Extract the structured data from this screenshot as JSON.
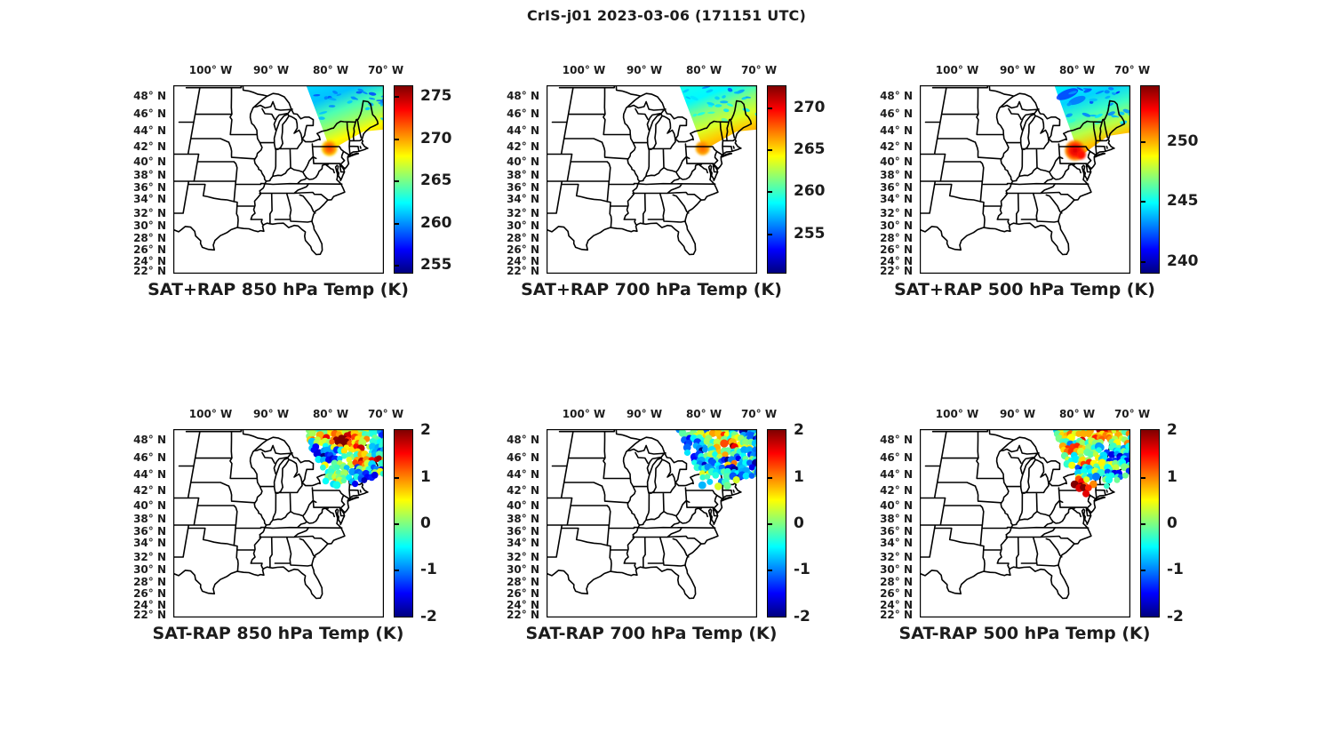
{
  "figure_title": "CrIS-j01 2023-03-06 (171151 UTC)",
  "axes": {
    "lon_tick_labels": [
      "100° W",
      "90° W",
      "80° W",
      "70° W"
    ],
    "lon_tick_values": [
      100,
      90,
      80,
      70
    ],
    "lat_tick_labels": [
      "48° N",
      "46° N",
      "44° N",
      "42° N",
      "40° N",
      "38° N",
      "36° N",
      "34° N",
      "32° N",
      "30° N",
      "28° N",
      "26° N",
      "24° N",
      "22° N"
    ],
    "lat_tick_values": [
      48,
      46,
      44,
      42,
      40,
      38,
      36,
      34,
      32,
      30,
      28,
      26,
      24,
      22
    ]
  },
  "chart_data": [
    {
      "id": "sat_plus_rap_850",
      "type": "map-swath",
      "title": "SAT+RAP 850 hPa Temp (K)",
      "units": "K",
      "colormap": "jet",
      "map_extent": {
        "lon_min": -107,
        "lon_max": -65,
        "lat_min": 21.5,
        "lat_max": 49.5
      },
      "colorbar": {
        "min": 254.0,
        "max": 276.3,
        "ticks": [
          275,
          270,
          265,
          260,
          255
        ]
      },
      "swath": {
        "description": "CrIS overpass swath over the northeastern US / adjacent Canada and Atlantic, from ~49.5N at the top to its southern tip near the NY-PA border",
        "value_north_K": 261.0,
        "value_mid_K": 264.0,
        "value_south_K": 268.0,
        "hotspot_K": 271.0,
        "hotspot_core_K": 272.3,
        "hotspot_lon": -77.3,
        "hotspot_lat": 41.8
      }
    },
    {
      "id": "sat_plus_rap_700",
      "type": "map-swath",
      "title": "SAT+RAP 700 hPa Temp (K)",
      "units": "K",
      "colormap": "jet",
      "map_extent": {
        "lon_min": -107,
        "lon_max": -65,
        "lat_min": 21.5,
        "lat_max": 49.5
      },
      "colorbar": {
        "min": 250.2,
        "max": 272.6,
        "ticks": [
          270,
          265,
          260,
          255
        ]
      },
      "swath": {
        "description": "Same swath footprint as 850 hPa; cyan in the north grading to yellow with an orange hotspot at the southern tip",
        "value_north_K": 258.5,
        "value_mid_K": 261.5,
        "value_south_K": 265.3,
        "hotspot_K": 266.8,
        "hotspot_core_K": 267.8,
        "hotspot_lon": -77.3,
        "hotspot_lat": 41.8
      }
    },
    {
      "id": "sat_plus_rap_500",
      "type": "map-swath",
      "title": "SAT+RAP 500 hPa Temp (K)",
      "units": "K",
      "colormap": "jet",
      "map_extent": {
        "lon_min": -107,
        "lon_max": -65,
        "lat_min": 21.5,
        "lat_max": 49.5
      },
      "colorbar": {
        "min": 239.0,
        "max": 254.6,
        "ticks": [
          250,
          245,
          240
        ]
      },
      "swath": {
        "description": "Swath extends slightly farther south over PA; cold blue patch in the northwest of the swath, red-orange hotspot near 41.5N",
        "value_north_K": 244.2,
        "value_mid_K": 245.8,
        "value_south_K": 249.6,
        "cold_patch_K": 241.8,
        "hotspot_K": 252.4,
        "hotspot_core_K": 253.3,
        "hotspot_lon": -77.5,
        "hotspot_lat": 41.5
      }
    },
    {
      "id": "sat_minus_rap_850",
      "type": "map-scatter",
      "title": "SAT-RAP 850 hPa Temp (K)",
      "units": "K",
      "colormap": "jet",
      "map_extent": {
        "lon_min": -107,
        "lon_max": -65,
        "lat_min": 21.5,
        "lat_max": 49.5
      },
      "colorbar": {
        "min": -2.02,
        "max": 2.02,
        "ticks": [
          2,
          1,
          0,
          -1,
          -2
        ]
      },
      "scatter": {
        "seed": 11,
        "approx_count": 220,
        "dot_radius_px": 3.8,
        "value_range_K": [
          -2,
          2
        ],
        "pattern": "strong warm (dark red) cluster in the swath's upper-middle, cold (blue) points along swath edges and toward New England"
      }
    },
    {
      "id": "sat_minus_rap_700",
      "type": "map-scatter",
      "title": "SAT-RAP 700 hPa Temp (K)",
      "units": "K",
      "colormap": "jet",
      "map_extent": {
        "lon_min": -107,
        "lon_max": -65,
        "lat_min": 21.5,
        "lat_max": 49.5
      },
      "colorbar": {
        "min": -2.02,
        "max": 2.02,
        "ticks": [
          2,
          1,
          0,
          -1,
          -2
        ]
      },
      "scatter": {
        "seed": 23,
        "approx_count": 220,
        "dot_radius_px": 3.8,
        "value_range_K": [
          -2,
          2
        ],
        "pattern": "mostly cold (blue) differences with warm orange-red streaks through the swath's upper-middle"
      }
    },
    {
      "id": "sat_minus_rap_500",
      "type": "map-scatter",
      "title": "SAT-RAP 500 hPa Temp (K)",
      "units": "K",
      "colormap": "jet",
      "map_extent": {
        "lon_min": -107,
        "lon_max": -65,
        "lat_min": 21.5,
        "lat_max": 49.5
      },
      "colorbar": {
        "min": -2.02,
        "max": 2.02,
        "ticks": [
          2,
          1,
          0,
          -1,
          -2
        ]
      },
      "scatter": {
        "seed": 37,
        "approx_count": 250,
        "dot_radius_px": 3.8,
        "value_range_K": [
          -2,
          2
        ],
        "extends_south_to_lat": 41.0,
        "pattern": "warm band along the swath top, cold patch mid-swath, warm cluster near the southern tip around 41.5N 77.5W"
      }
    }
  ]
}
